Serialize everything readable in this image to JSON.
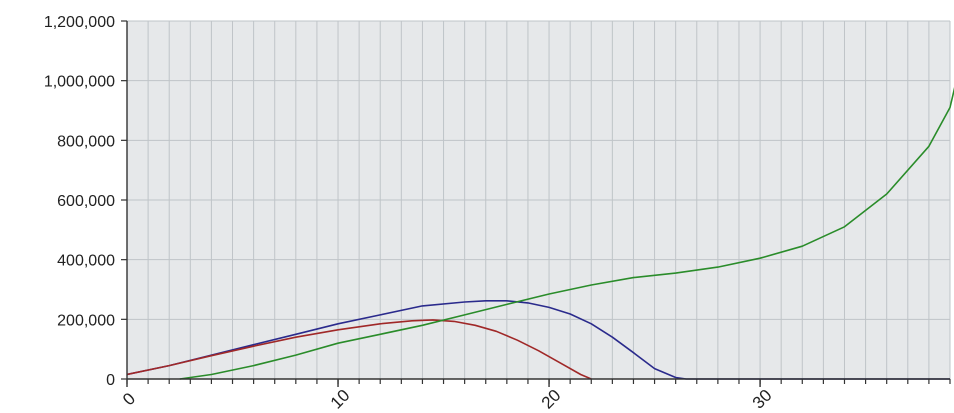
{
  "chart_data": {
    "type": "line",
    "title": "",
    "xlabel": "",
    "ylabel": "",
    "xlim": [
      0,
      39
    ],
    "ylim": [
      0,
      1200000
    ],
    "x_ticks": [
      {
        "value": 0,
        "label": "0"
      },
      {
        "value": 10,
        "label": "10"
      },
      {
        "value": 20,
        "label": "20"
      },
      {
        "value": 30,
        "label": "30"
      }
    ],
    "y_ticks": [
      {
        "value": 0,
        "label": "0"
      },
      {
        "value": 200000,
        "label": "200,000"
      },
      {
        "value": 400000,
        "label": "400,000"
      },
      {
        "value": 600000,
        "label": "600,000"
      },
      {
        "value": 800000,
        "label": "800,000"
      },
      {
        "value": 1000000,
        "label": "1,000,000"
      },
      {
        "value": 1200000,
        "label": "1,200,000"
      }
    ],
    "grid": true,
    "background_color": "#e6e8ea",
    "grid_color": "#bfc4c8",
    "series": [
      {
        "color": "#2a2a8c",
        "points": [
          [
            0,
            15000
          ],
          [
            2,
            45000
          ],
          [
            4,
            80000
          ],
          [
            6,
            115000
          ],
          [
            8,
            150000
          ],
          [
            10,
            185000
          ],
          [
            12,
            215000
          ],
          [
            14,
            245000
          ],
          [
            16,
            258000
          ],
          [
            17,
            262000
          ],
          [
            18,
            262000
          ],
          [
            19,
            255000
          ],
          [
            20,
            240000
          ],
          [
            21,
            218000
          ],
          [
            22,
            185000
          ],
          [
            23,
            140000
          ],
          [
            24,
            88000
          ],
          [
            25,
            35000
          ],
          [
            26,
            5000
          ],
          [
            26.5,
            0
          ],
          [
            39,
            0
          ]
        ]
      },
      {
        "color": "#a02828",
        "points": [
          [
            0,
            15000
          ],
          [
            2,
            45000
          ],
          [
            4,
            78000
          ],
          [
            6,
            110000
          ],
          [
            8,
            140000
          ],
          [
            10,
            165000
          ],
          [
            12,
            185000
          ],
          [
            13.5,
            195000
          ],
          [
            14.5,
            198000
          ],
          [
            15.5,
            193000
          ],
          [
            16.5,
            180000
          ],
          [
            17.5,
            160000
          ],
          [
            18.5,
            130000
          ],
          [
            19.5,
            95000
          ],
          [
            20.5,
            55000
          ],
          [
            21.5,
            15000
          ],
          [
            22,
            0
          ]
        ]
      },
      {
        "color": "#2a8c2a",
        "points": [
          [
            2.5,
            0
          ],
          [
            4,
            15000
          ],
          [
            6,
            45000
          ],
          [
            8,
            80000
          ],
          [
            10,
            120000
          ],
          [
            12,
            150000
          ],
          [
            14,
            180000
          ],
          [
            16,
            215000
          ],
          [
            18,
            250000
          ],
          [
            20,
            285000
          ],
          [
            22,
            315000
          ],
          [
            24,
            340000
          ],
          [
            26,
            355000
          ],
          [
            28,
            375000
          ],
          [
            30,
            405000
          ],
          [
            32,
            445000
          ],
          [
            34,
            510000
          ],
          [
            36,
            620000
          ],
          [
            38,
            780000
          ],
          [
            39,
            910000
          ],
          [
            39.3,
            1000000
          ]
        ]
      }
    ]
  }
}
